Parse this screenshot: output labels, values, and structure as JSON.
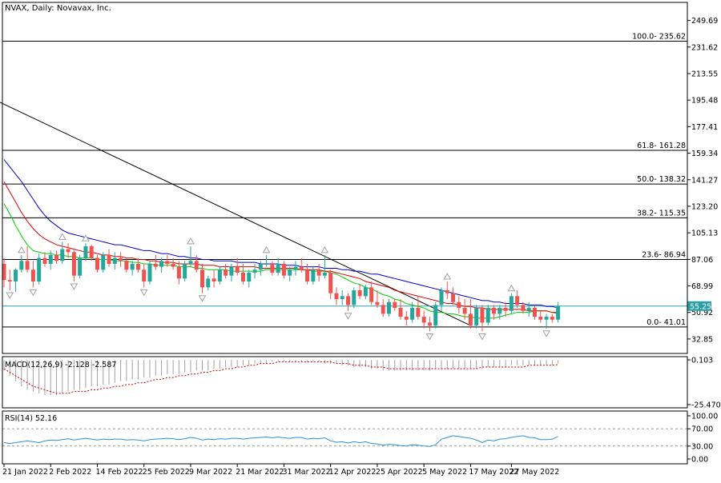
{
  "header": {
    "symbol": "NVAX",
    "timeframe": "Daily:",
    "company": "Novavax, Inc.",
    "title_line": "NVAX, Daily:  Novavax, Inc."
  },
  "colors": {
    "bull": "#26a69a",
    "bear": "#ef5350",
    "ma_fast": "#00cc00",
    "ma_mid": "#e00000",
    "ma_slow": "#0000cc",
    "price_line": "#2b9fa7",
    "macd_hist": "#a0a0a0",
    "macd_signal": "#cc0000",
    "rsi_line": "#2b8fd6",
    "fractal": "#a0a0a0"
  },
  "chart_data": {
    "type": "candlestick",
    "ylim": [
      23.0,
      262.0
    ],
    "y_ticks": [
      "249.69",
      "231.62",
      "213.55",
      "195.48",
      "177.41",
      "159.34",
      "141.27",
      "123.20",
      "105.13",
      "87.06",
      "68.99",
      "50.92",
      "32.85"
    ],
    "current_price_label": "55.25",
    "current_price": 55.25,
    "x_tick_labels": [
      "21 Jan 2022",
      "2 Feb 2022",
      "14 Feb 2022",
      "25 Feb 2022",
      "9 Mar 2022",
      "21 Mar 2022",
      "31 Mar 2022",
      "12 Apr 2022",
      "25 Apr 2022",
      "5 May 2022",
      "17 May 2022",
      "27 May 2022"
    ],
    "candles": [
      [
        84,
        88,
        68,
        73
      ],
      [
        73,
        80,
        66,
        72
      ],
      [
        72,
        81,
        65,
        80
      ],
      [
        80,
        90,
        78,
        86
      ],
      [
        86,
        96,
        78,
        80
      ],
      [
        80,
        86,
        68,
        72
      ],
      [
        72,
        91,
        70,
        88
      ],
      [
        88,
        92,
        82,
        84
      ],
      [
        84,
        93,
        80,
        90
      ],
      [
        90,
        93,
        84,
        86
      ],
      [
        86,
        99,
        84,
        94
      ],
      [
        94,
        98,
        88,
        92
      ],
      [
        92,
        93,
        72,
        76
      ],
      [
        76,
        90,
        74,
        88
      ],
      [
        88,
        98,
        86,
        96
      ],
      [
        96,
        97,
        86,
        88
      ],
      [
        88,
        90,
        78,
        80
      ],
      [
        80,
        92,
        78,
        90
      ],
      [
        90,
        94,
        82,
        84
      ],
      [
        84,
        92,
        80,
        88
      ],
      [
        88,
        92,
        82,
        86
      ],
      [
        86,
        88,
        78,
        80
      ],
      [
        80,
        86,
        76,
        84
      ],
      [
        84,
        88,
        78,
        80
      ],
      [
        80,
        84,
        68,
        72
      ],
      [
        72,
        86,
        70,
        84
      ],
      [
        84,
        90,
        80,
        82
      ],
      [
        82,
        88,
        78,
        86
      ],
      [
        86,
        90,
        82,
        84
      ],
      [
        84,
        88,
        80,
        82
      ],
      [
        82,
        86,
        70,
        74
      ],
      [
        74,
        86,
        72,
        84
      ],
      [
        84,
        96,
        82,
        86
      ],
      [
        86,
        90,
        78,
        80
      ],
      [
        80,
        84,
        64,
        68
      ],
      [
        68,
        76,
        66,
        74
      ],
      [
        74,
        80,
        68,
        72
      ],
      [
        72,
        82,
        70,
        80
      ],
      [
        80,
        84,
        74,
        76
      ],
      [
        76,
        84,
        72,
        82
      ],
      [
        82,
        88,
        76,
        78
      ],
      [
        78,
        84,
        70,
        72
      ],
      [
        72,
        80,
        68,
        78
      ],
      [
        78,
        84,
        74,
        80
      ],
      [
        80,
        86,
        76,
        84
      ],
      [
        84,
        90,
        82,
        84
      ],
      [
        84,
        86,
        76,
        78
      ],
      [
        78,
        88,
        76,
        84
      ],
      [
        84,
        86,
        74,
        76
      ],
      [
        76,
        82,
        72,
        80
      ],
      [
        80,
        86,
        76,
        82
      ],
      [
        82,
        88,
        78,
        80
      ],
      [
        80,
        84,
        70,
        72
      ],
      [
        72,
        82,
        70,
        80
      ],
      [
        80,
        84,
        72,
        76
      ],
      [
        76,
        90,
        74,
        78
      ],
      [
        78,
        80,
        60,
        64
      ],
      [
        64,
        68,
        56,
        60
      ],
      [
        60,
        66,
        56,
        62
      ],
      [
        62,
        64,
        52,
        56
      ],
      [
        56,
        68,
        54,
        66
      ],
      [
        66,
        70,
        60,
        62
      ],
      [
        62,
        70,
        60,
        68
      ],
      [
        68,
        72,
        56,
        58
      ],
      [
        58,
        66,
        54,
        56
      ],
      [
        56,
        60,
        48,
        50
      ],
      [
        50,
        60,
        48,
        58
      ],
      [
        58,
        60,
        52,
        54
      ],
      [
        54,
        60,
        46,
        48
      ],
      [
        48,
        52,
        42,
        46
      ],
      [
        46,
        58,
        44,
        54
      ],
      [
        54,
        62,
        46,
        48
      ],
      [
        48,
        52,
        40,
        44
      ],
      [
        44,
        48,
        38,
        42
      ],
      [
        42,
        58,
        40,
        56
      ],
      [
        56,
        68,
        52,
        66
      ],
      [
        66,
        72,
        60,
        64
      ],
      [
        64,
        68,
        56,
        58
      ],
      [
        58,
        62,
        50,
        54
      ],
      [
        54,
        60,
        46,
        50
      ],
      [
        50,
        60,
        40,
        42
      ],
      [
        42,
        56,
        40,
        54
      ],
      [
        54,
        56,
        38,
        44
      ],
      [
        44,
        56,
        42,
        54
      ],
      [
        54,
        56,
        46,
        50
      ],
      [
        50,
        56,
        46,
        54
      ],
      [
        54,
        58,
        48,
        52
      ],
      [
        52,
        64,
        50,
        62
      ],
      [
        62,
        66,
        54,
        56
      ],
      [
        56,
        58,
        50,
        52
      ],
      [
        52,
        58,
        48,
        54
      ],
      [
        54,
        56,
        46,
        48
      ],
      [
        48,
        52,
        44,
        46
      ],
      [
        46,
        50,
        40,
        48
      ],
      [
        48,
        50,
        44,
        46
      ],
      [
        46,
        58,
        44,
        55.25
      ]
    ],
    "moving_averages": [
      {
        "color_key": "ma_fast",
        "values": [
          125,
          118,
          110,
          103,
          97,
          93,
          92,
          91,
          91,
          90,
          90,
          89,
          89,
          88,
          88,
          88,
          87,
          87,
          87,
          86,
          86,
          86,
          85,
          85,
          84,
          84,
          83,
          83,
          83,
          83,
          82,
          82,
          82,
          81,
          81,
          80,
          80,
          80,
          80,
          79,
          79,
          79,
          79,
          79,
          79,
          80,
          80,
          80,
          80,
          80,
          80,
          80,
          80,
          79,
          79,
          79,
          78,
          77,
          75,
          73,
          71,
          70,
          68,
          67,
          65,
          63,
          62,
          60,
          59,
          57,
          56,
          55,
          54,
          52,
          51,
          51,
          50,
          50,
          49,
          48,
          48,
          47,
          47,
          47,
          47,
          48,
          49,
          50,
          51,
          51,
          51,
          52,
          52,
          52,
          51,
          50
        ]
      },
      {
        "color_key": "ma_mid",
        "values": [
          140,
          133,
          126,
          119,
          113,
          108,
          104,
          101,
          99,
          97,
          96,
          95,
          94,
          93,
          92,
          92,
          91,
          90,
          90,
          89,
          89,
          88,
          88,
          87,
          87,
          86,
          86,
          85,
          85,
          85,
          84,
          84,
          84,
          84,
          83,
          83,
          83,
          82,
          82,
          82,
          82,
          82,
          82,
          82,
          81,
          81,
          81,
          81,
          81,
          81,
          81,
          80,
          80,
          80,
          80,
          79,
          79,
          78,
          77,
          76,
          75,
          74,
          72,
          71,
          70,
          69,
          68,
          66,
          65,
          64,
          63,
          62,
          61,
          60,
          59,
          58,
          57,
          57,
          56,
          55,
          55,
          54,
          54,
          53,
          53,
          53,
          53,
          53,
          53,
          53,
          52,
          52,
          52,
          52,
          51,
          51
        ]
      },
      {
        "color_key": "ma_slow",
        "values": [
          155,
          150,
          145,
          140,
          134,
          128,
          122,
          117,
          113,
          110,
          107,
          105,
          104,
          103,
          102,
          101,
          100,
          99,
          98,
          97,
          97,
          96,
          95,
          94,
          93,
          93,
          92,
          91,
          91,
          90,
          89,
          89,
          88,
          88,
          87,
          87,
          86,
          86,
          86,
          86,
          85,
          85,
          85,
          85,
          84,
          84,
          84,
          84,
          83,
          83,
          83,
          82,
          82,
          82,
          82,
          81,
          81,
          81,
          80,
          80,
          79,
          79,
          78,
          77,
          77,
          76,
          75,
          74,
          73,
          72,
          71,
          70,
          69,
          68,
          67,
          66,
          65,
          64,
          63,
          62,
          61,
          60,
          59,
          59,
          58,
          58,
          57,
          57,
          57,
          57,
          56,
          56,
          56,
          55,
          55,
          54
        ]
      }
    ],
    "trendline": {
      "from": [
        0,
        194
      ],
      "to": [
        80,
        42
      ]
    },
    "fibonacci": [
      {
        "label": "100.0- 235.62",
        "value": 235.62
      },
      {
        "label": "61.8- 161.28",
        "value": 161.28
      },
      {
        "label": "50.0- 138.32",
        "value": 138.32
      },
      {
        "label": "38.2- 115.35",
        "value": 115.35
      },
      {
        "label": "23.6- 86.94",
        "value": 86.94
      },
      {
        "label": "0.0- 41.01",
        "value": 41.01
      }
    ],
    "fractals": [
      {
        "i": 1,
        "v": 66,
        "dir": "down"
      },
      {
        "i": 3,
        "v": 90,
        "dir": "up"
      },
      {
        "i": 5,
        "v": 68,
        "dir": "down"
      },
      {
        "i": 10,
        "v": 99,
        "dir": "up"
      },
      {
        "i": 12,
        "v": 72,
        "dir": "down"
      },
      {
        "i": 14,
        "v": 98,
        "dir": "up"
      },
      {
        "i": 24,
        "v": 68,
        "dir": "down"
      },
      {
        "i": 32,
        "v": 96,
        "dir": "up"
      },
      {
        "i": 34,
        "v": 64,
        "dir": "down"
      },
      {
        "i": 45,
        "v": 90,
        "dir": "up"
      },
      {
        "i": 55,
        "v": 90,
        "dir": "up"
      },
      {
        "i": 59,
        "v": 52,
        "dir": "down"
      },
      {
        "i": 73,
        "v": 38,
        "dir": "down"
      },
      {
        "i": 76,
        "v": 72,
        "dir": "up"
      },
      {
        "i": 82,
        "v": 38,
        "dir": "down"
      },
      {
        "i": 87,
        "v": 64,
        "dir": "up"
      },
      {
        "i": 93,
        "v": 40,
        "dir": "down"
      }
    ],
    "macd": {
      "label": "MACD(12,26,9) -2.128 -2.587",
      "ylim": [
        -25.47,
        0.103
      ],
      "y_ticks": [
        "0.103",
        "-25.470"
      ],
      "hist": [
        -6,
        -9,
        -12,
        -15,
        -17,
        -18,
        -19,
        -20,
        -20,
        -20,
        -19,
        -18,
        -17,
        -17,
        -16,
        -15,
        -15,
        -14,
        -14,
        -13,
        -12,
        -12,
        -11,
        -11,
        -10,
        -10,
        -9,
        -9,
        -8,
        -8,
        -8,
        -7,
        -7,
        -6,
        -6,
        -6,
        -5,
        -5,
        -4,
        -4,
        -4,
        -3,
        -3,
        -2,
        -2,
        -2,
        -1,
        -1,
        -1,
        -1,
        -1,
        -1,
        -1,
        -1,
        -1,
        -2,
        -2,
        -2,
        -3,
        -3,
        -4,
        -4,
        -4,
        -5,
        -5,
        -6,
        -6,
        -6,
        -6,
        -6,
        -6,
        -6,
        -6,
        -6,
        -5,
        -5,
        -5,
        -5,
        -5,
        -5,
        -5,
        -5,
        -5,
        -4,
        -4,
        -4,
        -4,
        -3,
        -3,
        -3,
        -3,
        -3,
        -3,
        -3,
        -3,
        -2
      ],
      "signal": [
        -5,
        -7,
        -9,
        -11,
        -13,
        -15,
        -16,
        -17,
        -18,
        -19,
        -19,
        -19,
        -18,
        -18,
        -18,
        -17,
        -17,
        -16,
        -16,
        -15,
        -15,
        -14,
        -14,
        -13,
        -13,
        -12,
        -11,
        -11,
        -10,
        -10,
        -9,
        -9,
        -8,
        -8,
        -7,
        -7,
        -6,
        -6,
        -5,
        -5,
        -4,
        -4,
        -3,
        -3,
        -2,
        -2,
        -2,
        -1,
        -1,
        -1,
        -1,
        -1,
        -1,
        -1,
        -1,
        -1,
        -1,
        -2,
        -2,
        -2,
        -3,
        -3,
        -3,
        -4,
        -4,
        -4,
        -5,
        -5,
        -5,
        -5,
        -5,
        -5,
        -5,
        -5,
        -5,
        -5,
        -5,
        -5,
        -5,
        -5,
        -5,
        -5,
        -4,
        -4,
        -4,
        -4,
        -4,
        -4,
        -4,
        -4,
        -3,
        -3,
        -3,
        -3,
        -3,
        -2.6
      ]
    },
    "rsi": {
      "label": "RSI(14) 52.16",
      "ylim": [
        0,
        100
      ],
      "y_ticks": [
        "100.00",
        "70.00",
        "30.00",
        "0.00"
      ],
      "levels": [
        70,
        30
      ],
      "values": [
        38,
        36,
        38,
        40,
        42,
        40,
        38,
        42,
        44,
        43,
        45,
        47,
        44,
        46,
        48,
        46,
        44,
        46,
        45,
        46,
        46,
        44,
        45,
        44,
        42,
        45,
        46,
        47,
        48,
        47,
        45,
        47,
        50,
        48,
        44,
        46,
        45,
        47,
        46,
        48,
        48,
        46,
        48,
        49,
        50,
        51,
        49,
        51,
        49,
        48,
        50,
        50,
        46,
        48,
        47,
        49,
        42,
        39,
        40,
        37,
        40,
        38,
        40,
        36,
        35,
        32,
        34,
        33,
        31,
        30,
        33,
        32,
        30,
        29,
        33,
        46,
        50,
        54,
        52,
        50,
        48,
        44,
        38,
        44,
        42,
        46,
        47,
        50,
        52,
        54,
        50,
        49,
        45,
        45,
        46,
        52.16
      ]
    }
  }
}
